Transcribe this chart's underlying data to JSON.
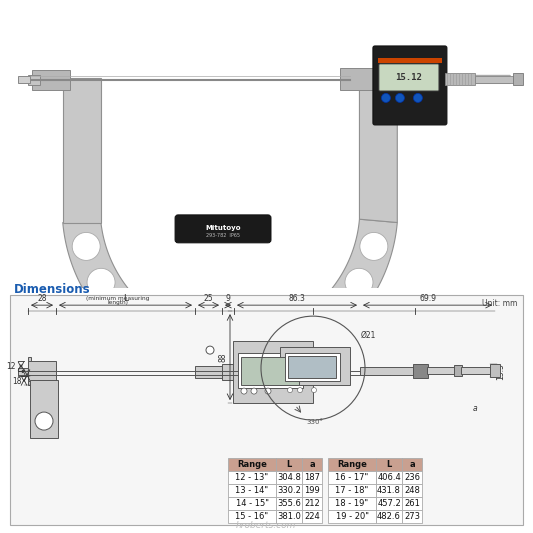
{
  "bg_color": "#ffffff",
  "dimensions_label": "Dimensions",
  "dimensions_label_color": "#1a5cb0",
  "unit_label": "Unit: mm",
  "table_header_bg": "#c9a090",
  "table_border_color": "#aaaaaa",
  "table1": {
    "headers": [
      "Range",
      "L",
      "a"
    ],
    "rows": [
      [
        "12 - 13\"",
        "304.8",
        "187"
      ],
      [
        "13 - 14\"",
        "330.2",
        "199"
      ],
      [
        "14 - 15\"",
        "355.6",
        "212"
      ],
      [
        "15 - 16\"",
        "381.0",
        "224"
      ]
    ]
  },
  "table2": {
    "headers": [
      "Range",
      "L",
      "a"
    ],
    "rows": [
      [
        "16 - 17\"",
        "406.4",
        "236"
      ],
      [
        "17 - 18\"",
        "431.8",
        "248"
      ],
      [
        "18 - 19\"",
        "457.2",
        "261"
      ],
      [
        "19 - 20\"",
        "482.6",
        "273"
      ]
    ]
  },
  "watermark": "hroberts.com"
}
